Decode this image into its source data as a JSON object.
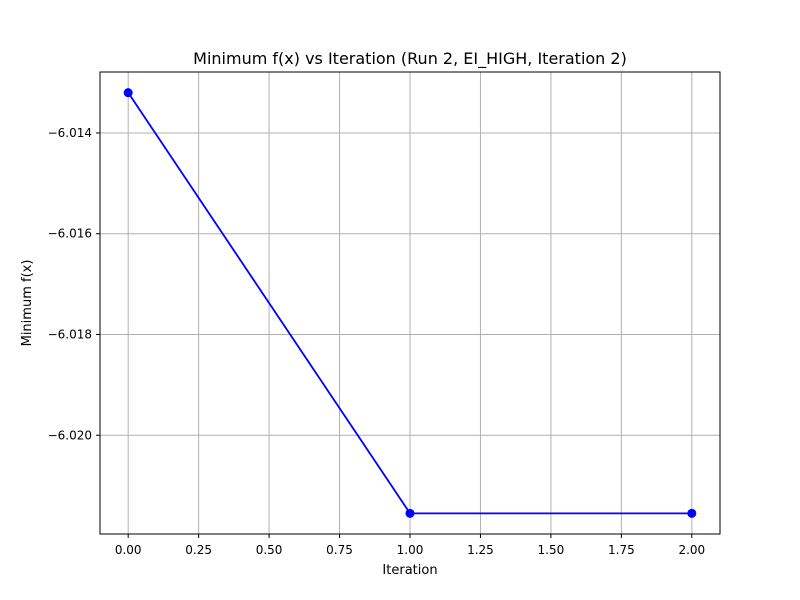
{
  "chart_data": {
    "type": "line",
    "title": "Minimum f(x) vs Iteration (Run 2, EI_HIGH, Iteration 2)",
    "xlabel": "Iteration",
    "ylabel": "Minimum f(x)",
    "x": [
      0,
      1,
      2
    ],
    "series": [
      {
        "values": [
          -6.0132,
          -6.02155,
          -6.02155
        ],
        "color": "#0000ff",
        "marker": "circle"
      }
    ],
    "xlim": [
      -0.1,
      2.1
    ],
    "ylim": [
      -6.02196,
      -6.01279
    ],
    "xticks": [
      0,
      0.25,
      0.5,
      0.75,
      1,
      1.25,
      1.5,
      1.75,
      2
    ],
    "xtick_labels": [
      "0.00",
      "0.25",
      "0.50",
      "0.75",
      "1.00",
      "1.25",
      "1.50",
      "1.75",
      "2.00"
    ],
    "yticks": [
      -6.014,
      -6.016,
      -6.018,
      -6.02
    ],
    "ytick_labels": [
      "−6.014",
      "−6.016",
      "−6.018",
      "−6.020"
    ],
    "grid": true,
    "grid_color": "#b0b0b0"
  }
}
